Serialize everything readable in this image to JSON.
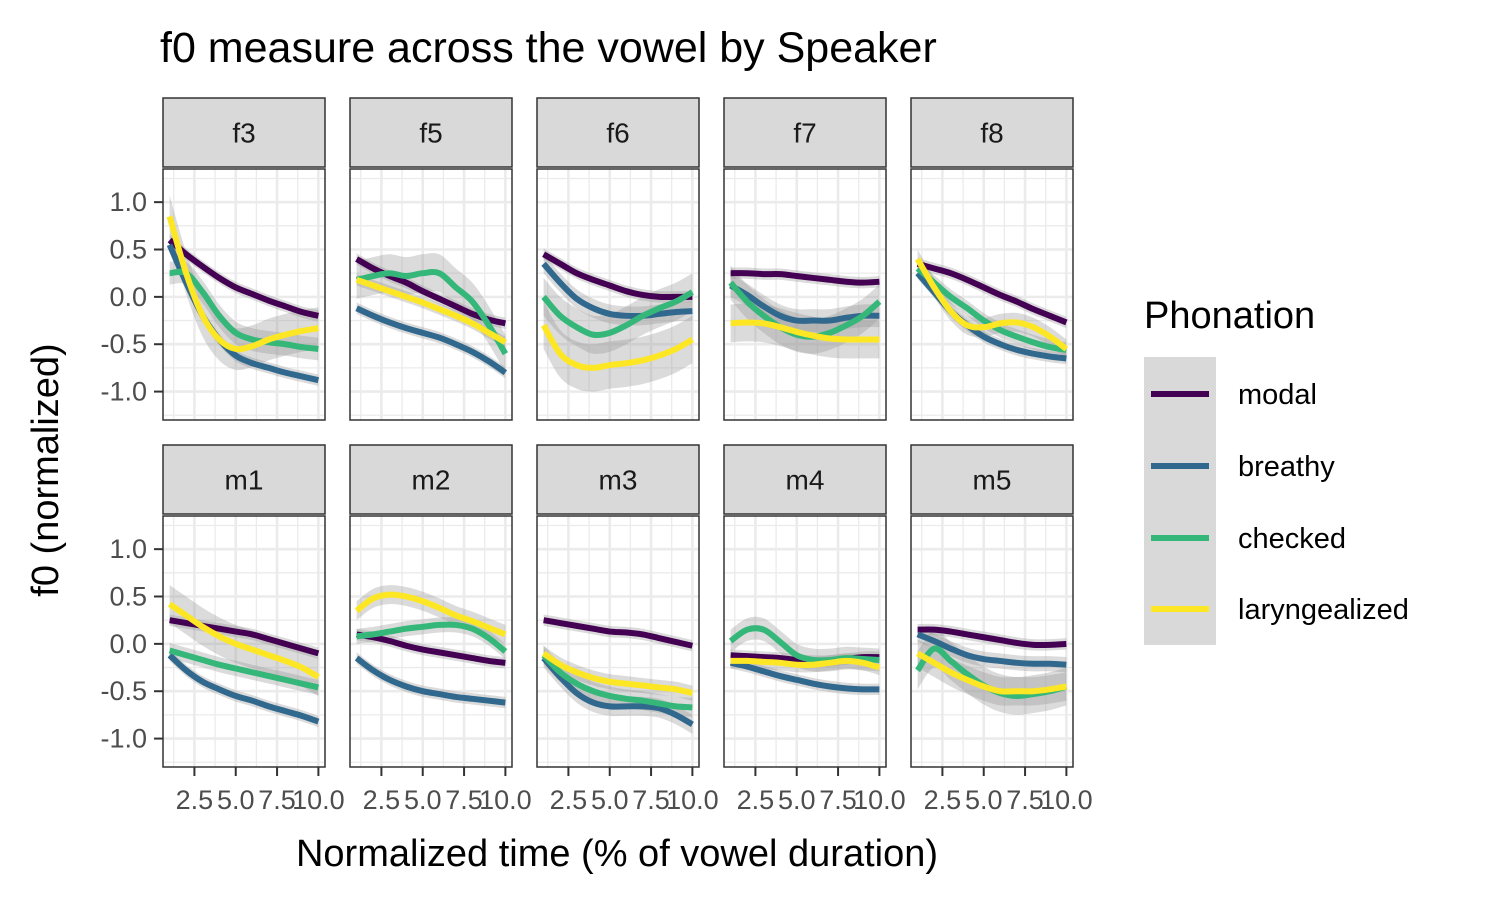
{
  "chart_data": {
    "type": "line",
    "title": "f0 measure across the vowel by Speaker",
    "xlabel": "Normalized time (% of vowel duration)",
    "ylabel": "f0 (normalized)",
    "xlim": [
      0.6,
      10.4
    ],
    "ylim": [
      -1.3,
      1.35
    ],
    "x_ticks": [
      2.5,
      5.0,
      7.5,
      10.0
    ],
    "x_tick_labels": [
      "2.5",
      "5.0",
      "7.5",
      "10.0"
    ],
    "y_ticks": [
      1.0,
      0.5,
      0.0,
      -0.5,
      -1.0
    ],
    "y_tick_labels": [
      "1.0",
      "0.5",
      "0.0",
      "-0.5",
      "-1.0"
    ],
    "grid": true,
    "smoothed_with_confidence_band": true,
    "legend": {
      "title": "Phonation",
      "position": "right",
      "entries": [
        "modal",
        "breathy",
        "checked",
        "laryngealized"
      ]
    },
    "series_colors": {
      "modal": "#440154",
      "breathy": "#31688e",
      "checked": "#35b779",
      "laryngealized": "#fde725"
    },
    "x": [
      1,
      2,
      3,
      4,
      5,
      6,
      7,
      8,
      9,
      10
    ],
    "facets": [
      {
        "label": "f3",
        "series": [
          {
            "name": "modal",
            "values": [
              0.6,
              0.45,
              0.32,
              0.2,
              0.1,
              0.03,
              -0.04,
              -0.1,
              -0.16,
              -0.2
            ],
            "band": 0.06
          },
          {
            "name": "breathy",
            "values": [
              0.55,
              0.15,
              -0.2,
              -0.45,
              -0.62,
              -0.7,
              -0.75,
              -0.8,
              -0.84,
              -0.88
            ],
            "band": 0.06
          },
          {
            "name": "checked",
            "values": [
              0.25,
              0.25,
              0.05,
              -0.2,
              -0.38,
              -0.45,
              -0.48,
              -0.5,
              -0.53,
              -0.55
            ],
            "band": 0.12
          },
          {
            "name": "laryngealized",
            "values": [
              0.85,
              0.25,
              -0.2,
              -0.45,
              -0.55,
              -0.52,
              -0.45,
              -0.4,
              -0.36,
              -0.33
            ],
            "band": 0.22
          }
        ]
      },
      {
        "label": "f5",
        "series": [
          {
            "name": "modal",
            "values": [
              0.4,
              0.3,
              0.22,
              0.15,
              0.06,
              -0.02,
              -0.1,
              -0.18,
              -0.24,
              -0.28
            ],
            "band": 0.06
          },
          {
            "name": "breathy",
            "values": [
              -0.12,
              -0.2,
              -0.27,
              -0.33,
              -0.38,
              -0.43,
              -0.5,
              -0.58,
              -0.68,
              -0.8
            ],
            "band": 0.06
          },
          {
            "name": "checked",
            "values": [
              0.18,
              0.22,
              0.25,
              0.22,
              0.25,
              0.25,
              0.1,
              -0.05,
              -0.3,
              -0.6
            ],
            "band": 0.2
          },
          {
            "name": "laryngealized",
            "values": [
              0.18,
              0.12,
              0.06,
              0.0,
              -0.06,
              -0.13,
              -0.2,
              -0.28,
              -0.38,
              -0.48
            ],
            "band": 0.06
          }
        ]
      },
      {
        "label": "f6",
        "series": [
          {
            "name": "modal",
            "values": [
              0.45,
              0.35,
              0.25,
              0.18,
              0.12,
              0.06,
              0.02,
              0.0,
              0.0,
              0.0
            ],
            "band": 0.06
          },
          {
            "name": "breathy",
            "values": [
              0.35,
              0.15,
              -0.02,
              -0.12,
              -0.18,
              -0.2,
              -0.2,
              -0.18,
              -0.16,
              -0.15
            ],
            "band": 0.1
          },
          {
            "name": "checked",
            "values": [
              0.0,
              -0.2,
              -0.32,
              -0.4,
              -0.38,
              -0.3,
              -0.2,
              -0.12,
              -0.05,
              0.05
            ],
            "band": 0.2
          },
          {
            "name": "laryngealized",
            "values": [
              -0.3,
              -0.6,
              -0.72,
              -0.75,
              -0.72,
              -0.7,
              -0.67,
              -0.62,
              -0.55,
              -0.45
            ],
            "band": 0.25
          }
        ]
      },
      {
        "label": "f7",
        "series": [
          {
            "name": "modal",
            "values": [
              0.25,
              0.25,
              0.24,
              0.24,
              0.22,
              0.2,
              0.18,
              0.16,
              0.15,
              0.16
            ],
            "band": 0.06
          },
          {
            "name": "breathy",
            "values": [
              0.12,
              0.02,
              -0.1,
              -0.2,
              -0.25,
              -0.25,
              -0.25,
              -0.22,
              -0.2,
              -0.2
            ],
            "band": 0.12
          },
          {
            "name": "checked",
            "values": [
              0.15,
              -0.05,
              -0.2,
              -0.32,
              -0.4,
              -0.42,
              -0.38,
              -0.3,
              -0.2,
              -0.05
            ],
            "band": 0.18
          },
          {
            "name": "laryngealized",
            "values": [
              -0.28,
              -0.27,
              -0.28,
              -0.32,
              -0.37,
              -0.41,
              -0.44,
              -0.45,
              -0.45,
              -0.45
            ],
            "band": 0.2
          }
        ]
      },
      {
        "label": "f8",
        "series": [
          {
            "name": "modal",
            "values": [
              0.35,
              0.3,
              0.25,
              0.18,
              0.1,
              0.02,
              -0.05,
              -0.13,
              -0.2,
              -0.27
            ],
            "band": 0.06
          },
          {
            "name": "breathy",
            "values": [
              0.25,
              0.05,
              -0.15,
              -0.3,
              -0.42,
              -0.5,
              -0.56,
              -0.6,
              -0.63,
              -0.65
            ],
            "band": 0.06
          },
          {
            "name": "checked",
            "values": [
              0.3,
              0.15,
              0.0,
              -0.12,
              -0.25,
              -0.35,
              -0.42,
              -0.48,
              -0.53,
              -0.56
            ],
            "band": 0.08
          },
          {
            "name": "laryngealized",
            "values": [
              0.4,
              0.1,
              -0.15,
              -0.3,
              -0.32,
              -0.28,
              -0.27,
              -0.32,
              -0.42,
              -0.55
            ],
            "band": 0.1
          }
        ]
      },
      {
        "label": "m1",
        "series": [
          {
            "name": "modal",
            "values": [
              0.25,
              0.22,
              0.19,
              0.16,
              0.13,
              0.1,
              0.05,
              0.0,
              -0.05,
              -0.1
            ],
            "band": 0.06
          },
          {
            "name": "breathy",
            "values": [
              -0.12,
              -0.28,
              -0.4,
              -0.48,
              -0.55,
              -0.6,
              -0.66,
              -0.71,
              -0.76,
              -0.82
            ],
            "band": 0.06
          },
          {
            "name": "checked",
            "values": [
              -0.07,
              -0.12,
              -0.17,
              -0.22,
              -0.26,
              -0.3,
              -0.34,
              -0.38,
              -0.42,
              -0.46
            ],
            "band": 0.08
          },
          {
            "name": "laryngealized",
            "values": [
              0.42,
              0.3,
              0.18,
              0.08,
              0.0,
              -0.06,
              -0.12,
              -0.18,
              -0.25,
              -0.35
            ],
            "band": 0.2
          }
        ]
      },
      {
        "label": "m2",
        "series": [
          {
            "name": "modal",
            "values": [
              0.1,
              0.07,
              0.03,
              -0.02,
              -0.06,
              -0.09,
              -0.12,
              -0.15,
              -0.18,
              -0.2
            ],
            "band": 0.06
          },
          {
            "name": "breathy",
            "values": [
              -0.15,
              -0.28,
              -0.38,
              -0.45,
              -0.5,
              -0.53,
              -0.56,
              -0.58,
              -0.6,
              -0.62
            ],
            "band": 0.06
          },
          {
            "name": "checked",
            "values": [
              0.08,
              0.1,
              0.13,
              0.16,
              0.18,
              0.2,
              0.2,
              0.16,
              0.06,
              -0.08
            ],
            "band": 0.08
          },
          {
            "name": "laryngealized",
            "values": [
              0.35,
              0.48,
              0.52,
              0.5,
              0.45,
              0.38,
              0.3,
              0.24,
              0.17,
              0.1
            ],
            "band": 0.1
          }
        ]
      },
      {
        "label": "m3",
        "series": [
          {
            "name": "modal",
            "values": [
              0.25,
              0.22,
              0.19,
              0.16,
              0.13,
              0.12,
              0.1,
              0.06,
              0.02,
              -0.02
            ],
            "band": 0.06
          },
          {
            "name": "breathy",
            "values": [
              -0.15,
              -0.35,
              -0.52,
              -0.62,
              -0.66,
              -0.66,
              -0.66,
              -0.68,
              -0.75,
              -0.85
            ],
            "band": 0.1
          },
          {
            "name": "checked",
            "values": [
              -0.12,
              -0.3,
              -0.42,
              -0.5,
              -0.55,
              -0.58,
              -0.6,
              -0.63,
              -0.66,
              -0.67
            ],
            "band": 0.1
          },
          {
            "name": "laryngealized",
            "values": [
              -0.1,
              -0.22,
              -0.3,
              -0.36,
              -0.4,
              -0.42,
              -0.44,
              -0.46,
              -0.48,
              -0.52
            ],
            "band": 0.08
          }
        ]
      },
      {
        "label": "m4",
        "series": [
          {
            "name": "modal",
            "values": [
              -0.12,
              -0.13,
              -0.14,
              -0.15,
              -0.17,
              -0.18,
              -0.18,
              -0.16,
              -0.14,
              -0.14
            ],
            "band": 0.06
          },
          {
            "name": "breathy",
            "values": [
              -0.2,
              -0.24,
              -0.29,
              -0.34,
              -0.38,
              -0.42,
              -0.45,
              -0.47,
              -0.48,
              -0.48
            ],
            "band": 0.06
          },
          {
            "name": "checked",
            "values": [
              0.03,
              0.15,
              0.15,
              0.02,
              -0.12,
              -0.17,
              -0.17,
              -0.15,
              -0.16,
              -0.17
            ],
            "band": 0.12
          },
          {
            "name": "laryngealized",
            "values": [
              -0.18,
              -0.18,
              -0.19,
              -0.2,
              -0.22,
              -0.22,
              -0.2,
              -0.18,
              -0.2,
              -0.25
            ],
            "band": 0.08
          }
        ]
      },
      {
        "label": "m5",
        "series": [
          {
            "name": "modal",
            "values": [
              0.15,
              0.15,
              0.13,
              0.1,
              0.07,
              0.04,
              0.01,
              -0.01,
              -0.01,
              0.0
            ],
            "band": 0.06
          },
          {
            "name": "breathy",
            "values": [
              0.1,
              0.03,
              -0.05,
              -0.12,
              -0.16,
              -0.18,
              -0.2,
              -0.21,
              -0.21,
              -0.22
            ],
            "band": 0.08
          },
          {
            "name": "checked",
            "values": [
              -0.28,
              -0.05,
              -0.18,
              -0.32,
              -0.44,
              -0.52,
              -0.55,
              -0.53,
              -0.5,
              -0.45
            ],
            "band": 0.2
          },
          {
            "name": "laryngealized",
            "values": [
              -0.1,
              -0.2,
              -0.3,
              -0.38,
              -0.45,
              -0.5,
              -0.5,
              -0.5,
              -0.48,
              -0.45
            ],
            "band": 0.15
          }
        ]
      }
    ]
  }
}
